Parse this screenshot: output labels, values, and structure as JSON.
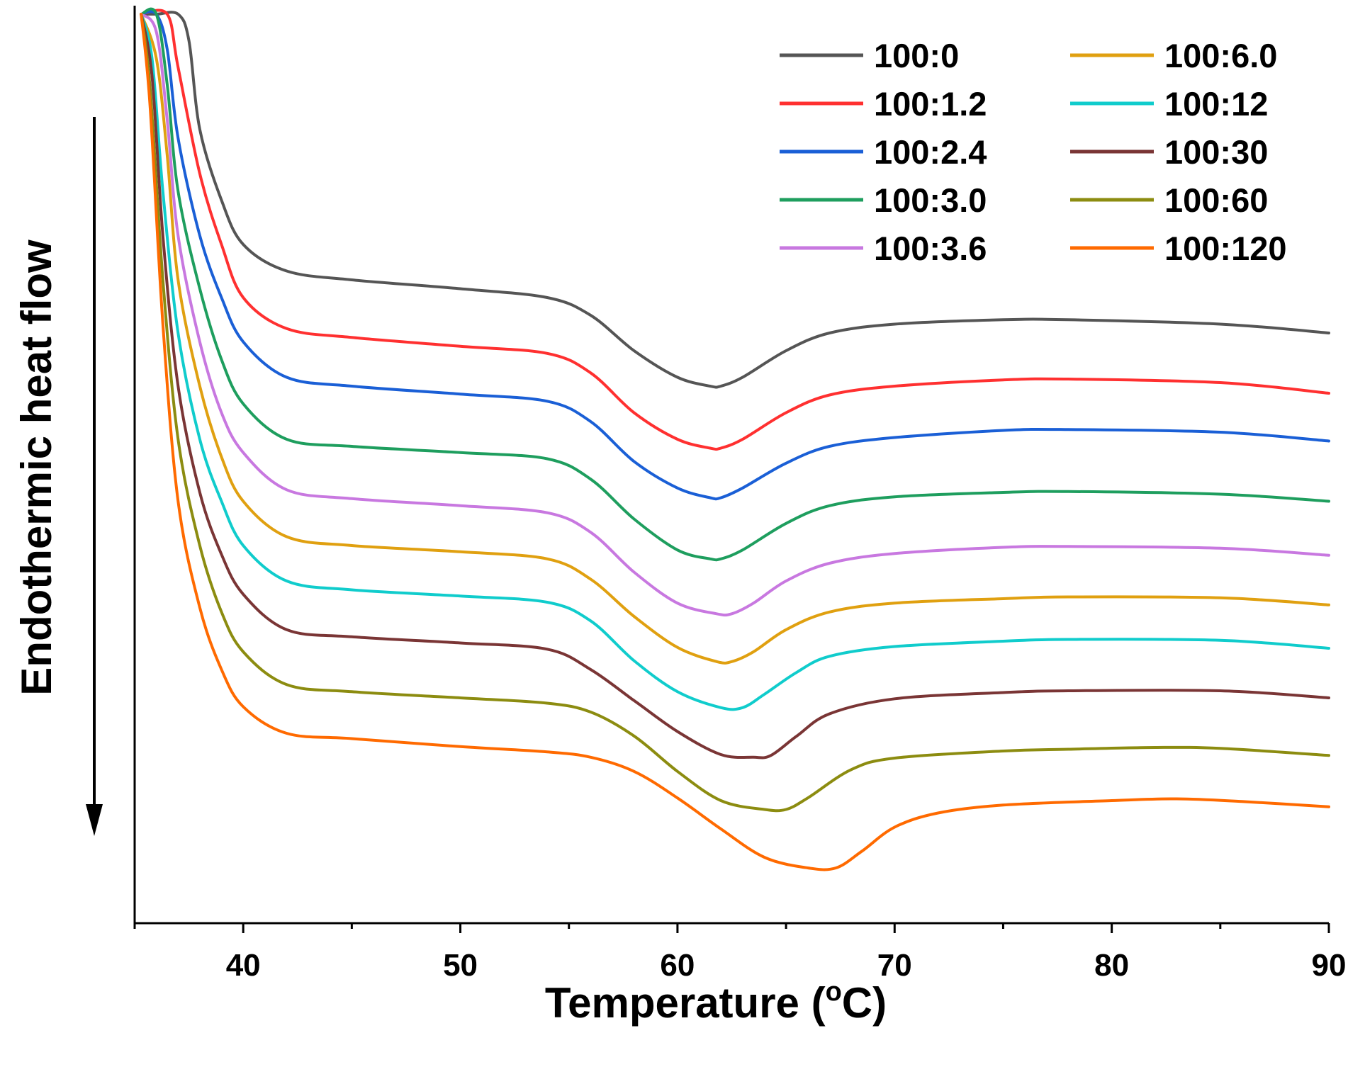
{
  "chart_data": {
    "type": "line",
    "title": "",
    "xlabel": "Temperature",
    "xlabel_unit": "(oC)",
    "ylabel": "Endothermic heat flow",
    "y_arrow": "down",
    "xlim": [
      35,
      90
    ],
    "ylim": [
      0,
      100
    ],
    "x_ticks": [
      40,
      50,
      60,
      70,
      80,
      90
    ],
    "y_ticks_shown": false,
    "grid": false,
    "legend_position": "top-right",
    "series": [
      {
        "name": "100:0",
        "color": "#555555",
        "points": [
          [
            35.3,
            100
          ],
          [
            36,
            100
          ],
          [
            37,
            100
          ],
          [
            37.5,
            97
          ],
          [
            38,
            87
          ],
          [
            39,
            79
          ],
          [
            40,
            74
          ],
          [
            42,
            71
          ],
          [
            45,
            70
          ],
          [
            50,
            69
          ],
          [
            54,
            68
          ],
          [
            56,
            66
          ],
          [
            58,
            62
          ],
          [
            60,
            59
          ],
          [
            61.5,
            58
          ],
          [
            62,
            58
          ],
          [
            63,
            59
          ],
          [
            65,
            62
          ],
          [
            67,
            64
          ],
          [
            70,
            65
          ],
          [
            75,
            65.5
          ],
          [
            78,
            65.5
          ],
          [
            85,
            65
          ],
          [
            90,
            64
          ]
        ]
      },
      {
        "name": "100:1.2",
        "color": "#ff3030",
        "points": [
          [
            35.3,
            100
          ],
          [
            36.5,
            100
          ],
          [
            37,
            94
          ],
          [
            38,
            82
          ],
          [
            39,
            74
          ],
          [
            40,
            68
          ],
          [
            42,
            64.5
          ],
          [
            45,
            63.5
          ],
          [
            50,
            62.5
          ],
          [
            54,
            61.7
          ],
          [
            56,
            59.5
          ],
          [
            58,
            55
          ],
          [
            60,
            52
          ],
          [
            61.5,
            51
          ],
          [
            62,
            51
          ],
          [
            63,
            52
          ],
          [
            65,
            55
          ],
          [
            67,
            57
          ],
          [
            70,
            58
          ],
          [
            75,
            58.7
          ],
          [
            78,
            58.8
          ],
          [
            85,
            58.4
          ],
          [
            90,
            57.2
          ]
        ]
      },
      {
        "name": "100:2.4",
        "color": "#1a5fd6",
        "points": [
          [
            35.3,
            100
          ],
          [
            36,
            100
          ],
          [
            36.5,
            96
          ],
          [
            37,
            86
          ],
          [
            38,
            75
          ],
          [
            39,
            68
          ],
          [
            40,
            63
          ],
          [
            42,
            59
          ],
          [
            45,
            58
          ],
          [
            50,
            57.1
          ],
          [
            54,
            56.3
          ],
          [
            56,
            54
          ],
          [
            58,
            49.5
          ],
          [
            60,
            46.5
          ],
          [
            61.5,
            45.4
          ],
          [
            62,
            45.4
          ],
          [
            63,
            46.5
          ],
          [
            65,
            49.3
          ],
          [
            67,
            51.2
          ],
          [
            70,
            52.2
          ],
          [
            75,
            53
          ],
          [
            78,
            53.1
          ],
          [
            85,
            52.8
          ],
          [
            90,
            51.8
          ]
        ]
      },
      {
        "name": "100:3.0",
        "color": "#1e9e5e",
        "points": [
          [
            35.3,
            100
          ],
          [
            36,
            100
          ],
          [
            36.5,
            92
          ],
          [
            37,
            80
          ],
          [
            38,
            69
          ],
          [
            39,
            61
          ],
          [
            40,
            56
          ],
          [
            42,
            52
          ],
          [
            45,
            51.2
          ],
          [
            50,
            50.5
          ],
          [
            54,
            49.8
          ],
          [
            56,
            47.5
          ],
          [
            58,
            43
          ],
          [
            60,
            39.5
          ],
          [
            61.5,
            38.5
          ],
          [
            62,
            38.5
          ],
          [
            63,
            39.5
          ],
          [
            65,
            42.5
          ],
          [
            67,
            44.5
          ],
          [
            70,
            45.5
          ],
          [
            75,
            46
          ],
          [
            78,
            46.1
          ],
          [
            85,
            45.8
          ],
          [
            90,
            45
          ]
        ]
      },
      {
        "name": "100:3.6",
        "color": "#c878e0",
        "points": [
          [
            35.3,
            100
          ],
          [
            36,
            98
          ],
          [
            36.5,
            88
          ],
          [
            37,
            75
          ],
          [
            38,
            63
          ],
          [
            39,
            55
          ],
          [
            40,
            50.5
          ],
          [
            42,
            46.3
          ],
          [
            45,
            45.3
          ],
          [
            50,
            44.5
          ],
          [
            54,
            43.7
          ],
          [
            56,
            41.5
          ],
          [
            58,
            37
          ],
          [
            60,
            33.5
          ],
          [
            61.8,
            32.3
          ],
          [
            62.5,
            32.3
          ],
          [
            63.5,
            33.5
          ],
          [
            65,
            36
          ],
          [
            67,
            38
          ],
          [
            70,
            39.1
          ],
          [
            75,
            39.8
          ],
          [
            78,
            39.9
          ],
          [
            85,
            39.7
          ],
          [
            90,
            38.9
          ]
        ]
      },
      {
        "name": "100:6.0",
        "color": "#e0a010",
        "points": [
          [
            35.3,
            100
          ],
          [
            36,
            95
          ],
          [
            36.5,
            84
          ],
          [
            37,
            70
          ],
          [
            38,
            58
          ],
          [
            39,
            50
          ],
          [
            40,
            45
          ],
          [
            42,
            41
          ],
          [
            45,
            40
          ],
          [
            50,
            39.3
          ],
          [
            54,
            38.5
          ],
          [
            56,
            36.2
          ],
          [
            58,
            32
          ],
          [
            60,
            28.5
          ],
          [
            61.8,
            26.9
          ],
          [
            62.5,
            26.9
          ],
          [
            63.5,
            28
          ],
          [
            65,
            30.5
          ],
          [
            67,
            32.5
          ],
          [
            70,
            33.5
          ],
          [
            75,
            34
          ],
          [
            78,
            34.2
          ],
          [
            85,
            34.1
          ],
          [
            90,
            33.3
          ]
        ]
      },
      {
        "name": "100:12",
        "color": "#10cccc",
        "points": [
          [
            35.3,
            100
          ],
          [
            35.8,
            95
          ],
          [
            36.3,
            80
          ],
          [
            37,
            64
          ],
          [
            38,
            52
          ],
          [
            39,
            45
          ],
          [
            40,
            40
          ],
          [
            42,
            36
          ],
          [
            45,
            35
          ],
          [
            50,
            34.3
          ],
          [
            54,
            33.6
          ],
          [
            56,
            31.5
          ],
          [
            58,
            27
          ],
          [
            60,
            23.5
          ],
          [
            62,
            21.7
          ],
          [
            63,
            21.7
          ],
          [
            64,
            23.2
          ],
          [
            65.5,
            25.7
          ],
          [
            67,
            27.5
          ],
          [
            70,
            28.6
          ],
          [
            75,
            29.2
          ],
          [
            78,
            29.4
          ],
          [
            85,
            29.3
          ],
          [
            90,
            28.4
          ]
        ]
      },
      {
        "name": "100:30",
        "color": "#7a3535",
        "points": [
          [
            35.3,
            100
          ],
          [
            35.8,
            93
          ],
          [
            36.3,
            75
          ],
          [
            37,
            58
          ],
          [
            38,
            46
          ],
          [
            39,
            39
          ],
          [
            40,
            34.5
          ],
          [
            42,
            30.5
          ],
          [
            45,
            29.7
          ],
          [
            50,
            29
          ],
          [
            54,
            28.3
          ],
          [
            56,
            26
          ],
          [
            58,
            22.5
          ],
          [
            60,
            19
          ],
          [
            62,
            16.4
          ],
          [
            63.5,
            16.1
          ],
          [
            64.3,
            16.3
          ],
          [
            65.5,
            18.5
          ],
          [
            67,
            21
          ],
          [
            70,
            22.7
          ],
          [
            75,
            23.4
          ],
          [
            78,
            23.6
          ],
          [
            85,
            23.6
          ],
          [
            90,
            22.8
          ]
        ]
      },
      {
        "name": "100:60",
        "color": "#8c8c10",
        "points": [
          [
            35.3,
            100
          ],
          [
            35.7,
            92
          ],
          [
            36.3,
            70
          ],
          [
            37,
            52
          ],
          [
            38,
            40
          ],
          [
            39,
            32.5
          ],
          [
            40,
            28
          ],
          [
            42,
            24.3
          ],
          [
            45,
            23.5
          ],
          [
            50,
            22.8
          ],
          [
            54,
            22.2
          ],
          [
            56,
            21.2
          ],
          [
            58,
            18.5
          ],
          [
            60,
            14.5
          ],
          [
            62,
            11.2
          ],
          [
            64,
            10.2
          ],
          [
            65,
            10.2
          ],
          [
            66,
            11.5
          ],
          [
            68,
            14.7
          ],
          [
            70,
            16
          ],
          [
            75,
            16.8
          ],
          [
            78,
            17
          ],
          [
            82,
            17.2
          ],
          [
            85,
            17.1
          ],
          [
            90,
            16.3
          ]
        ]
      },
      {
        "name": "100:120",
        "color": "#ff6a00",
        "points": [
          [
            35.3,
            100
          ],
          [
            35.7,
            90
          ],
          [
            36.3,
            65
          ],
          [
            37,
            45
          ],
          [
            38,
            33
          ],
          [
            39,
            26
          ],
          [
            40,
            21.8
          ],
          [
            42,
            18.8
          ],
          [
            45,
            18.2
          ],
          [
            50,
            17.3
          ],
          [
            54,
            16.7
          ],
          [
            56,
            16.1
          ],
          [
            58,
            14.5
          ],
          [
            60,
            11.5
          ],
          [
            62,
            8
          ],
          [
            64,
            4.8
          ],
          [
            66,
            3.6
          ],
          [
            67.3,
            3.6
          ],
          [
            68.5,
            5.5
          ],
          [
            70,
            8.2
          ],
          [
            72,
            9.8
          ],
          [
            75,
            10.7
          ],
          [
            80,
            11.2
          ],
          [
            83,
            11.4
          ],
          [
            86,
            11.1
          ],
          [
            90,
            10.5
          ]
        ]
      }
    ]
  }
}
